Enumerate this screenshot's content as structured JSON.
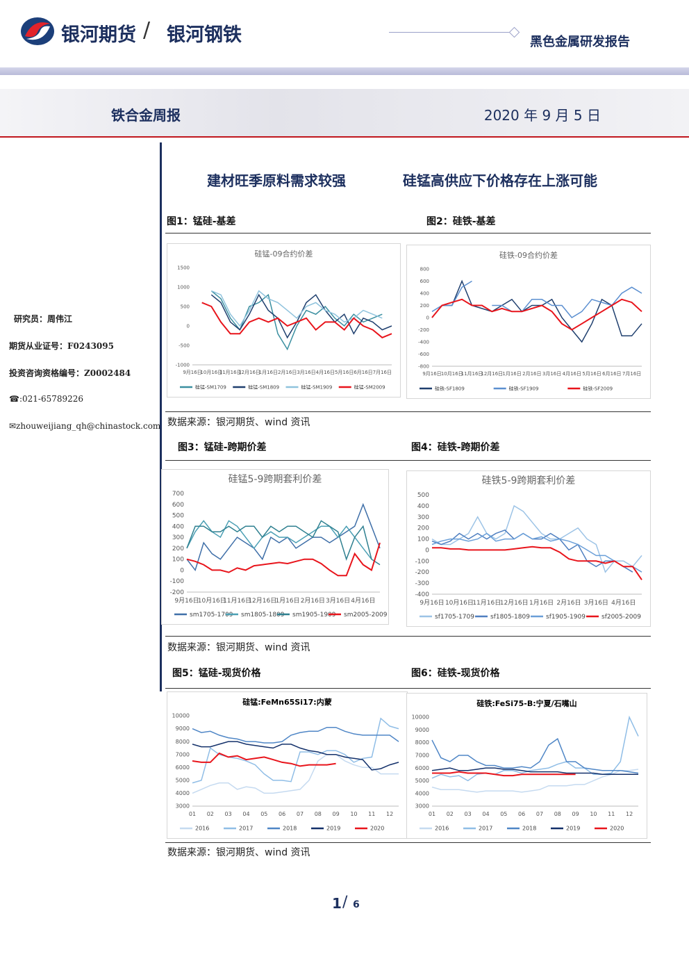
{
  "header": {
    "brand": "银河期货",
    "separator": "/",
    "sub_brand": "银河钢铁",
    "report": "黑色金属研发报告",
    "weekly": "铁合金周报",
    "date": "2020 年 9 月 5 日"
  },
  "sidebar": {
    "analyst": "研究员：周伟江",
    "license": "期货从业证号：F0243095",
    "advisor": "投资咨询资格编号：Z0002484",
    "phone": "☎:021-65789226",
    "email": "✉zhouweijiang_qh@chinastock.com"
  },
  "headline": [
    "建材旺季原料需求较强",
    "硅锰高供应下价格存在上涨可能"
  ],
  "figures": [
    "图1：锰硅-基差",
    "图2：硅铁-基差",
    "图3：锰硅-跨期价差",
    "图4：硅铁-跨期价差",
    "图5：锰硅-现货价格",
    "图6：硅铁-现货价格"
  ],
  "sources": [
    "数据来源：银河期货、wind 资讯",
    "数据来源：银河期货、wind 资讯",
    "数据来源：银河期货、wind 资讯"
  ],
  "page": {
    "current": "1",
    "separator": "/",
    "total": "6"
  },
  "chart_data": [
    {
      "type": "line",
      "title": "硅锰-09合约价差",
      "ylim": [
        -1000,
        1500
      ],
      "yticks": [
        -1000,
        -500,
        0,
        500,
        1000,
        1500
      ],
      "categories": [
        "9月16日",
        null,
        "10月16日",
        null,
        "11月16日",
        null,
        "12月16日",
        null,
        "1月16日",
        null,
        "2月16日",
        null,
        "3月16日",
        null,
        "4月16日",
        null,
        "5月16日",
        null,
        "6月16日",
        null,
        "7月16日",
        null
      ],
      "series": [
        {
          "name": "硅锰-SM1709",
          "color": "#3a8fa0",
          "values": [
            null,
            null,
            900,
            700,
            200,
            -100,
            500,
            600,
            800,
            -200,
            -600,
            0,
            400,
            300,
            500,
            200,
            0,
            300,
            100,
            200,
            300,
            null
          ]
        },
        {
          "name": "硅锰-SM1809",
          "color": "#1f3f6e",
          "values": [
            null,
            null,
            800,
            600,
            100,
            -100,
            300,
            800,
            400,
            200,
            -300,
            100,
            600,
            800,
            400,
            100,
            300,
            -200,
            200,
            100,
            -100,
            0
          ]
        },
        {
          "name": "硅锰-SM1909",
          "color": "#8fc3dd",
          "values": [
            null,
            null,
            900,
            800,
            300,
            0,
            400,
            900,
            700,
            600,
            400,
            200,
            500,
            600,
            400,
            300,
            100,
            200,
            400,
            300,
            200,
            null
          ]
        },
        {
          "name": "硅锰-SM2009",
          "color": "#e8141b",
          "values": [
            null,
            600,
            500,
            100,
            -200,
            -200,
            100,
            200,
            100,
            200,
            0,
            100,
            200,
            -100,
            100,
            100,
            -100,
            200,
            0,
            -100,
            -300,
            -200
          ]
        }
      ]
    },
    {
      "type": "line",
      "title": "硅铁-09合约价差",
      "ylim": [
        -800,
        800
      ],
      "yticks": [
        -800,
        -600,
        -400,
        -200,
        0,
        200,
        400,
        600,
        800
      ],
      "categories": [
        "9月16日",
        null,
        "10月16日",
        null,
        "11月16日",
        null,
        "12月16日",
        null,
        "1月16日",
        null,
        "2月16日",
        null,
        "3月16日",
        null,
        "4月16日",
        null,
        "5月16日",
        null,
        "6月16日",
        null,
        "7月16日",
        null
      ],
      "series": [
        {
          "name": "硅铁-SF1809",
          "color": "#1f3f6e",
          "values": [
            0,
            200,
            200,
            600,
            200,
            150,
            100,
            200,
            300,
            100,
            200,
            200,
            300,
            0,
            -200,
            -400,
            -100,
            300,
            200,
            -300,
            -300,
            -100
          ]
        },
        {
          "name": "硅铁-SF1909",
          "color": "#5b8fd0",
          "values": [
            100,
            200,
            200,
            500,
            600,
            null,
            200,
            200,
            100,
            100,
            300,
            300,
            200,
            200,
            0,
            100,
            300,
            250,
            200,
            400,
            500,
            400
          ]
        },
        {
          "name": "硅铁-SF2009",
          "color": "#e8141b",
          "values": [
            0,
            200,
            250,
            300,
            200,
            200,
            100,
            150,
            100,
            100,
            150,
            200,
            100,
            -100,
            -200,
            -100,
            0,
            100,
            200,
            300,
            250,
            100
          ]
        }
      ]
    },
    {
      "type": "line",
      "title": "硅锰5-9跨期套利价差",
      "ylim": [
        -200,
        700
      ],
      "yticks": [
        -200,
        -100,
        0,
        100,
        200,
        300,
        400,
        500,
        600,
        700
      ],
      "categories": [
        "9月16日",
        null,
        null,
        "10月16日",
        null,
        null,
        "11月16日",
        null,
        null,
        "12月16日",
        null,
        null,
        "1月16日",
        null,
        null,
        "2月16日",
        null,
        null,
        "3月16日",
        null,
        null,
        "4月16日",
        null,
        null
      ],
      "series": [
        {
          "name": "sm1705-1709",
          "color": "#3f6fa8",
          "values": [
            100,
            0,
            250,
            150,
            100,
            200,
            300,
            250,
            200,
            100,
            300,
            250,
            300,
            200,
            250,
            300,
            300,
            250,
            300,
            350,
            400,
            600,
            400,
            200
          ]
        },
        {
          "name": "sm1805-1809",
          "color": "#4b9fb4",
          "values": [
            200,
            350,
            450,
            350,
            300,
            450,
            400,
            300,
            200,
            300,
            350,
            300,
            300,
            250,
            300,
            350,
            400,
            400,
            300,
            400,
            300,
            200,
            100,
            null
          ]
        },
        {
          "name": "sm1905-1909",
          "color": "#2f8090",
          "values": [
            200,
            400,
            400,
            350,
            350,
            400,
            350,
            400,
            400,
            300,
            400,
            350,
            400,
            400,
            350,
            300,
            450,
            400,
            350,
            100,
            300,
            400,
            100,
            50
          ]
        },
        {
          "name": "sm2005-2009",
          "color": "#e8141b",
          "values": [
            100,
            80,
            50,
            0,
            0,
            -20,
            20,
            0,
            40,
            50,
            60,
            70,
            60,
            80,
            100,
            100,
            60,
            0,
            -50,
            -50,
            150,
            50,
            0,
            250
          ]
        }
      ]
    },
    {
      "type": "line",
      "title": "硅铁5-9跨期套利价差",
      "ylim": [
        -400,
        500
      ],
      "yticks": [
        -400,
        -300,
        -200,
        -100,
        0,
        100,
        200,
        300,
        400,
        500
      ],
      "categories": [
        "9月16日",
        null,
        null,
        "10月16日",
        null,
        null,
        "11月16日",
        null,
        null,
        "12月16日",
        null,
        null,
        "1月16日",
        null,
        null,
        "2月16日",
        null,
        null,
        "3月16日",
        null,
        null,
        "4月16日",
        null,
        null
      ],
      "series": [
        {
          "name": "sf1705-1709",
          "color": "#9cc3e6",
          "values": [
            100,
            50,
            50,
            100,
            150,
            300,
            150,
            100,
            150,
            400,
            350,
            250,
            150,
            100,
            100,
            150,
            200,
            100,
            50,
            -200,
            -100,
            -100,
            -150,
            -50
          ]
        },
        {
          "name": "sf1805-1809",
          "color": "#4f7fc0",
          "values": [
            80,
            50,
            80,
            150,
            100,
            150,
            100,
            150,
            180,
            100,
            150,
            100,
            100,
            150,
            100,
            0,
            50,
            -100,
            -150,
            -100,
            -100,
            -150,
            -200,
            null
          ]
        },
        {
          "name": "sf1905-1909",
          "color": "#6a9fd8",
          "values": [
            50,
            80,
            100,
            100,
            80,
            100,
            150,
            80,
            100,
            100,
            150,
            100,
            120,
            80,
            100,
            80,
            50,
            0,
            -50,
            -50,
            -100,
            -150,
            -150,
            -200
          ]
        },
        {
          "name": "sf2005-2009",
          "color": "#e8141b",
          "values": [
            20,
            20,
            10,
            10,
            0,
            0,
            0,
            0,
            0,
            10,
            20,
            30,
            20,
            20,
            -20,
            -80,
            -100,
            -100,
            -100,
            -120,
            -100,
            -150,
            -150,
            -270
          ]
        }
      ]
    },
    {
      "type": "line",
      "title": "硅锰:FeMn65Si17:内蒙",
      "ylim": [
        3000,
        10000
      ],
      "yticks": [
        3000,
        4000,
        5000,
        6000,
        7000,
        8000,
        9000,
        10000
      ],
      "categories": [
        "01",
        null,
        "02",
        null,
        "03",
        null,
        "04",
        null,
        "05",
        null,
        "06",
        null,
        "07",
        null,
        "08",
        null,
        "09",
        null,
        "10",
        null,
        "11",
        null,
        "12",
        null
      ],
      "series": [
        {
          "name": "2016",
          "color": "#c5daf0",
          "values": [
            4000,
            4300,
            4600,
            4800,
            4800,
            4300,
            4500,
            4400,
            4000,
            4000,
            4100,
            4200,
            4300,
            5000,
            6500,
            7000,
            7000,
            6500,
            6200,
            6000,
            6000,
            5500,
            5500,
            5500
          ]
        },
        {
          "name": "2017",
          "color": "#8fbde6",
          "values": [
            4800,
            5000,
            7500,
            7000,
            6800,
            6700,
            6500,
            6200,
            5500,
            5000,
            5000,
            4900,
            7200,
            7200,
            7000,
            7300,
            7300,
            7000,
            6400,
            6700,
            6800,
            9800,
            9200,
            9000
          ]
        },
        {
          "name": "2018",
          "color": "#4f86c6",
          "values": [
            9000,
            8700,
            8800,
            8500,
            8300,
            8200,
            8000,
            8000,
            7900,
            7900,
            8000,
            8500,
            8700,
            8800,
            8800,
            9100,
            9100,
            8800,
            8600,
            8500,
            8500,
            8500,
            8500,
            8000
          ]
        },
        {
          "name": "2019",
          "color": "#13306a",
          "values": [
            7800,
            7600,
            7600,
            7800,
            8000,
            8000,
            7800,
            7700,
            7600,
            7500,
            7800,
            7800,
            7500,
            7300,
            7200,
            7000,
            7000,
            6800,
            6700,
            6600,
            5800,
            5900,
            6200,
            6400
          ]
        },
        {
          "name": "2020",
          "color": "#e8141b",
          "values": [
            6500,
            6400,
            6400,
            7100,
            6800,
            6900,
            6600,
            6700,
            6800,
            6600,
            6400,
            6300,
            6100,
            6200,
            6200,
            6200,
            6300,
            null,
            null,
            null,
            null,
            null,
            null,
            null
          ]
        }
      ]
    },
    {
      "type": "line",
      "title": "硅铁:FeSi75-B:宁夏/石嘴山",
      "ylim": [
        3000,
        10000
      ],
      "yticks": [
        3000,
        4000,
        5000,
        6000,
        7000,
        8000,
        9000,
        10000
      ],
      "categories": [
        "01",
        null,
        "02",
        null,
        "03",
        null,
        "04",
        null,
        "05",
        null,
        "06",
        null,
        "07",
        null,
        "08",
        null,
        "09",
        null,
        "10",
        null,
        "11",
        null,
        "12",
        null
      ],
      "series": [
        {
          "name": "2016",
          "color": "#c5daf0",
          "values": [
            4500,
            4300,
            4300,
            4300,
            4200,
            4100,
            4200,
            4200,
            4200,
            4200,
            4100,
            4200,
            4300,
            4600,
            4600,
            4600,
            4700,
            4700,
            5000,
            5300,
            5500,
            5800,
            5800,
            5900
          ]
        },
        {
          "name": "2017",
          "color": "#8fbde6",
          "values": [
            5200,
            5500,
            5300,
            5400,
            5000,
            5500,
            5600,
            5500,
            5800,
            5800,
            5600,
            5800,
            5900,
            6000,
            6300,
            6500,
            6000,
            6000,
            5500,
            5500,
            5600,
            6500,
            10000,
            8500
          ]
        },
        {
          "name": "2018",
          "color": "#4f86c6",
          "values": [
            8200,
            6800,
            6500,
            7000,
            7000,
            6500,
            6200,
            6200,
            6000,
            6000,
            6100,
            6000,
            6500,
            7800,
            8300,
            6500,
            6500,
            6000,
            5900,
            5800,
            5800,
            5800,
            5700,
            5600
          ]
        },
        {
          "name": "2019",
          "color": "#13306a",
          "values": [
            5800,
            5900,
            6000,
            5800,
            5800,
            5900,
            6000,
            6000,
            5900,
            5900,
            5800,
            5700,
            5700,
            5700,
            5700,
            5600,
            5600,
            5600,
            5600,
            5500,
            5500,
            5500,
            5500,
            5500
          ]
        },
        {
          "name": "2020",
          "color": "#e8141b",
          "values": [
            5600,
            5600,
            5600,
            5700,
            5600,
            5600,
            5600,
            5500,
            5400,
            5400,
            5500,
            5500,
            5500,
            5500,
            5500,
            5500,
            5500,
            null,
            null,
            null,
            null,
            null,
            null,
            null
          ]
        }
      ]
    }
  ]
}
